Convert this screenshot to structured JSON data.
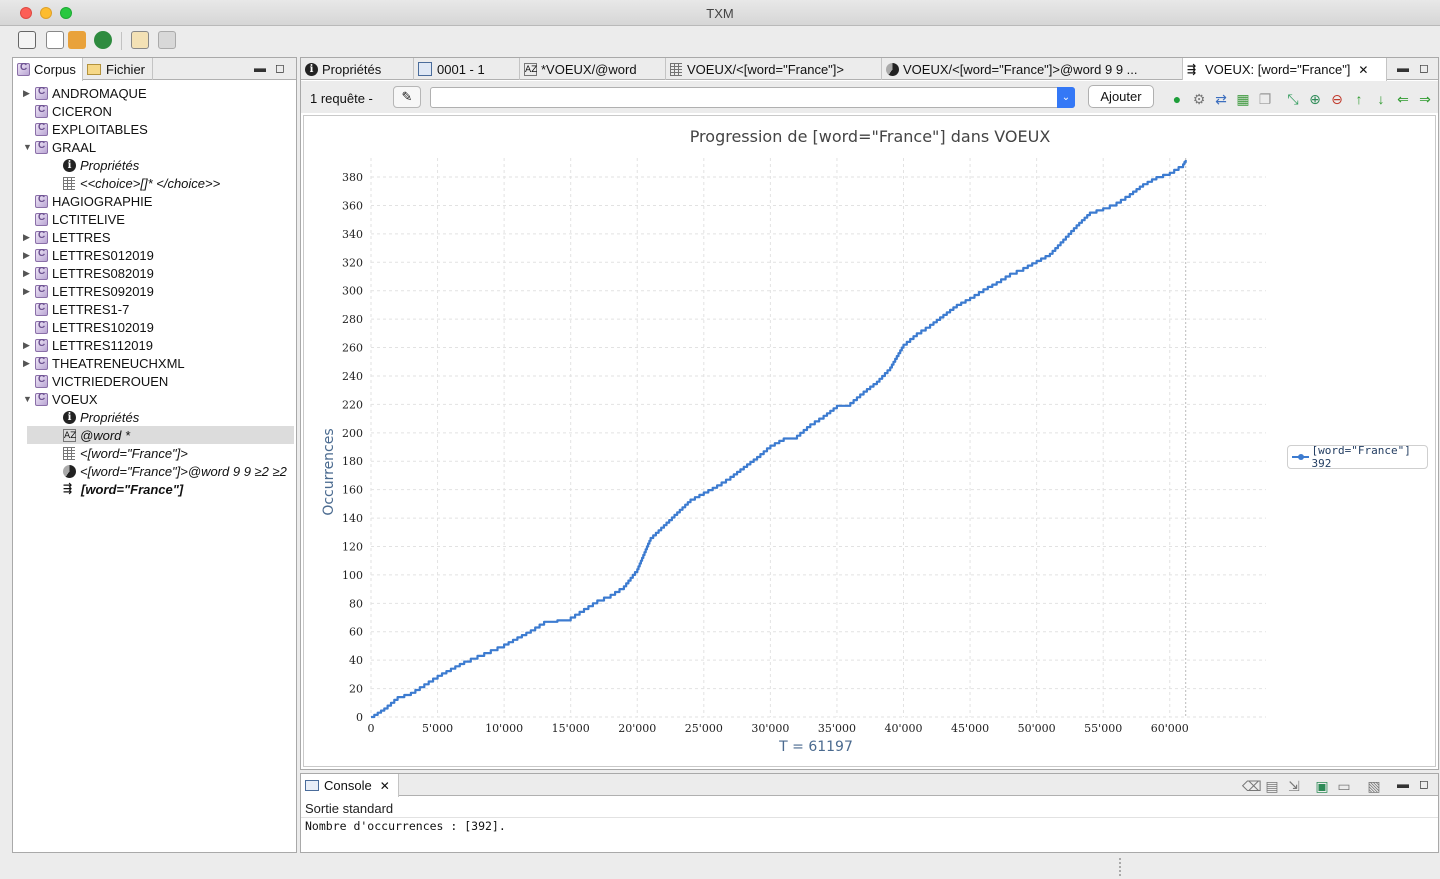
{
  "app": {
    "title": "TXM"
  },
  "colors": {
    "series": "#3c7bd0",
    "axis_title": "#4a6a8f",
    "chart_title": "#444444",
    "selection": "#dcdcdc"
  },
  "left_panel": {
    "tabs": [
      {
        "label": "Corpus",
        "icon": "corpus-icon"
      },
      {
        "label": "Fichier",
        "icon": "folder-icon"
      }
    ],
    "tree": [
      {
        "label": "ANDROMAQUE",
        "icon": "corpus-icon",
        "expandable": true,
        "expanded": false,
        "indent": 0
      },
      {
        "label": "CICERON",
        "icon": "corpus-icon",
        "expandable": false,
        "indent": 0
      },
      {
        "label": "EXPLOITABLES",
        "icon": "corpus-icon",
        "expandable": false,
        "indent": 0
      },
      {
        "label": "GRAAL",
        "icon": "corpus-icon",
        "expandable": true,
        "expanded": true,
        "indent": 0
      },
      {
        "label": "Propriétés",
        "icon": "info-icon",
        "italic": true,
        "indent": 1
      },
      {
        "label": "<<choice>[]* </choice>>",
        "icon": "concordance-icon",
        "italic": true,
        "indent": 1
      },
      {
        "label": "HAGIOGRAPHIE",
        "icon": "corpus-icon",
        "expandable": false,
        "indent": 0
      },
      {
        "label": "LCTITELIVE",
        "icon": "corpus-icon",
        "expandable": false,
        "indent": 0
      },
      {
        "label": "LETTRES",
        "icon": "corpus-icon",
        "expandable": true,
        "expanded": false,
        "indent": 0
      },
      {
        "label": "LETTRES012019",
        "icon": "corpus-icon",
        "expandable": true,
        "expanded": false,
        "indent": 0
      },
      {
        "label": "LETTRES082019",
        "icon": "corpus-icon",
        "expandable": true,
        "expanded": false,
        "indent": 0
      },
      {
        "label": "LETTRES092019",
        "icon": "corpus-icon",
        "expandable": true,
        "expanded": false,
        "indent": 0
      },
      {
        "label": "LETTRES1-7",
        "icon": "corpus-icon",
        "expandable": false,
        "indent": 0
      },
      {
        "label": "LETTRES102019",
        "icon": "corpus-icon",
        "expandable": false,
        "indent": 0
      },
      {
        "label": "LETTRES112019",
        "icon": "corpus-icon",
        "expandable": true,
        "expanded": false,
        "indent": 0
      },
      {
        "label": "THEATRENEUCHXML",
        "icon": "corpus-icon",
        "expandable": true,
        "expanded": false,
        "indent": 0
      },
      {
        "label": "VICTRIEDEROUEN",
        "icon": "corpus-icon",
        "expandable": false,
        "indent": 0
      },
      {
        "label": "VOEUX",
        "icon": "corpus-icon",
        "expandable": true,
        "expanded": true,
        "indent": 0
      },
      {
        "label": "Propriétés",
        "icon": "info-icon",
        "italic": true,
        "indent": 1
      },
      {
        "label": "@word *",
        "icon": "lexicon-icon",
        "italic": true,
        "indent": 1,
        "selected": true
      },
      {
        "label": "<[word=\"France\"]>",
        "icon": "concordance-icon",
        "italic": true,
        "indent": 1
      },
      {
        "label": "<[word=\"France\"]>@word 9 9 ≥2 ≥2",
        "icon": "pie-icon",
        "italic": true,
        "indent": 1
      },
      {
        "label": "[word=\"France\"]",
        "icon": "progression-icon",
        "italic": true,
        "bold": true,
        "indent": 1
      }
    ]
  },
  "editor": {
    "tabs": [
      {
        "label": "Propriétés",
        "icon": "info-icon"
      },
      {
        "label": "0001 - 1",
        "icon": "book-icon"
      },
      {
        "label": "*VOEUX/@word",
        "icon": "lexicon-icon"
      },
      {
        "label": "VOEUX/<[word=\"France\"]>",
        "icon": "concordance-icon"
      },
      {
        "label": "VOEUX/<[word=\"France\"]>@word 9 9 ...",
        "icon": "pie-icon"
      },
      {
        "label": "VOEUX: [word=\"France\"]",
        "icon": "progression-icon",
        "active": true,
        "closable": true
      }
    ],
    "query_count": "1 requête -",
    "query_value": "",
    "add_button": "Ajouter"
  },
  "chart_data": {
    "type": "line",
    "title": "Progression de [word=\"France\"] dans VOEUX",
    "xlabel": "T = 61197",
    "ylabel": "Occurrences",
    "xlim": [
      0,
      64000
    ],
    "ylim": [
      0,
      392
    ],
    "x_ticks": [
      "0",
      "5'000",
      "10'000",
      "15'000",
      "20'000",
      "25'000",
      "30'000",
      "35'000",
      "40'000",
      "45'000",
      "50'000",
      "55'000",
      "60'000"
    ],
    "x_tick_values": [
      0,
      5000,
      10000,
      15000,
      20000,
      25000,
      30000,
      35000,
      40000,
      45000,
      50000,
      55000,
      60000
    ],
    "y_ticks": [
      "0",
      "20",
      "40",
      "60",
      "80",
      "100",
      "120",
      "140",
      "160",
      "180",
      "200",
      "220",
      "240",
      "260",
      "280",
      "300",
      "320",
      "340",
      "360",
      "380"
    ],
    "y_tick_values": [
      0,
      20,
      40,
      60,
      80,
      100,
      120,
      140,
      160,
      180,
      200,
      220,
      240,
      260,
      280,
      300,
      320,
      340,
      360,
      380
    ],
    "grid": true,
    "legend_position": "right",
    "series": [
      {
        "name": "[word=\"France\"] 392",
        "x": [
          0,
          500,
          1000,
          2000,
          3000,
          4000,
          5000,
          6000,
          7000,
          8000,
          9000,
          10000,
          11000,
          12000,
          13000,
          14000,
          15000,
          16000,
          17000,
          18000,
          19000,
          20000,
          21000,
          22000,
          23000,
          24000,
          25000,
          26000,
          27000,
          28000,
          29000,
          30000,
          31000,
          32000,
          33000,
          34000,
          35000,
          36000,
          37000,
          38000,
          39000,
          40000,
          41000,
          42000,
          43000,
          44000,
          45000,
          46000,
          47000,
          48000,
          49000,
          50000,
          51000,
          52000,
          53000,
          54000,
          55000,
          56000,
          57000,
          58000,
          59000,
          60000,
          61000,
          61197
        ],
        "y": [
          0,
          3,
          6,
          14,
          17,
          23,
          29,
          34,
          39,
          43,
          47,
          51,
          56,
          61,
          67,
          68,
          70,
          76,
          82,
          86,
          92,
          104,
          126,
          135,
          144,
          153,
          158,
          163,
          169,
          176,
          183,
          191,
          196,
          198,
          206,
          212,
          219,
          221,
          229,
          236,
          246,
          262,
          270,
          276,
          283,
          290,
          295,
          301,
          306,
          312,
          316,
          321,
          326,
          336,
          346,
          355,
          358,
          362,
          368,
          375,
          380,
          383,
          389,
          392
        ]
      }
    ]
  },
  "legend": {
    "label": "[word=\"France\"] 392"
  },
  "console": {
    "tab_label": "Console",
    "stream_label": "Sortie standard",
    "output": "Nombre d'occurrences : [392]."
  }
}
